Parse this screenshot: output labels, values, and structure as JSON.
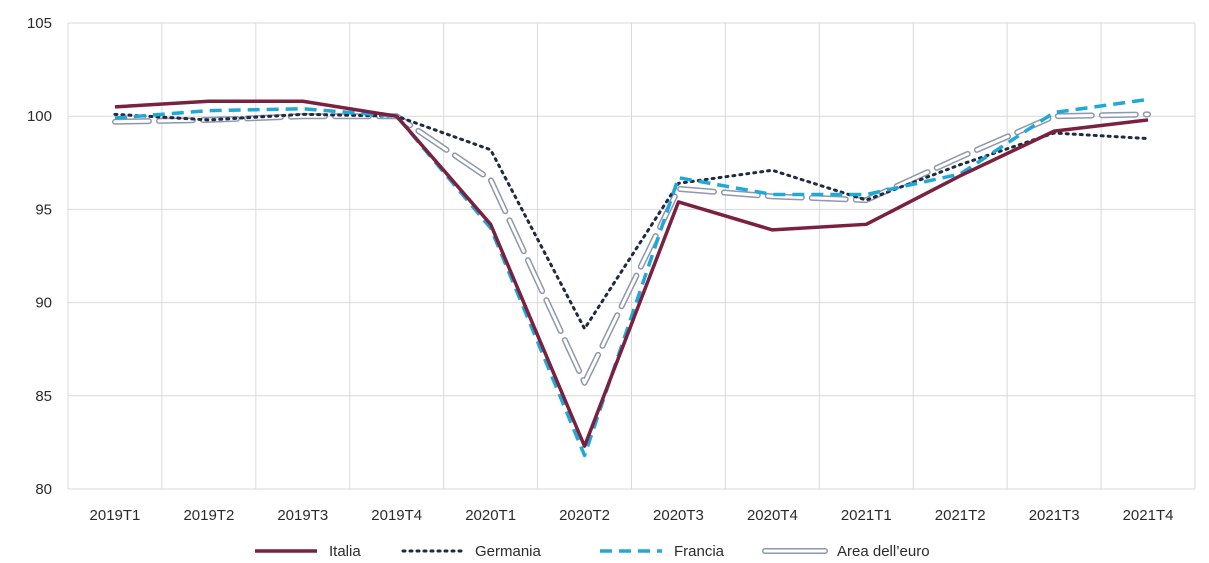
{
  "chart_data": {
    "type": "line",
    "title": "",
    "xlabel": "",
    "ylabel": "",
    "categories": [
      "2019T1",
      "2019T2",
      "2019T3",
      "2019T4",
      "2020T1",
      "2020T2",
      "2020T3",
      "2020T4",
      "2021T1",
      "2021T2",
      "2021T3",
      "2021T4"
    ],
    "ylim": [
      80,
      105
    ],
    "yticks": [
      80,
      85,
      90,
      95,
      100,
      105
    ],
    "grid": "vertical and horizontal",
    "legend_position": "bottom",
    "series": [
      {
        "name": "Italia",
        "color": "#7b2140",
        "style": "solid",
        "values": [
          100.5,
          100.8,
          100.8,
          100.0,
          94.2,
          82.3,
          95.4,
          93.9,
          94.2,
          96.8,
          99.2,
          99.8
        ]
      },
      {
        "name": "Germania",
        "color": "#1f2a44",
        "style": "dotted",
        "values": [
          100.1,
          99.8,
          100.1,
          100.0,
          98.2,
          88.6,
          96.4,
          97.1,
          95.5,
          97.4,
          99.1,
          98.8
        ]
      },
      {
        "name": "Francia",
        "color": "#1fa8d8",
        "style": "dashed",
        "values": [
          99.9,
          100.3,
          100.4,
          100.0,
          94.0,
          81.8,
          96.7,
          95.8,
          95.8,
          96.9,
          100.2,
          100.9
        ]
      },
      {
        "name": "Area dell’euro",
        "color": "#aab3c9",
        "style": "double",
        "values": [
          99.7,
          99.8,
          100.0,
          100.0,
          96.6,
          85.7,
          96.1,
          95.7,
          95.5,
          97.8,
          100.0,
          100.1
        ]
      }
    ]
  }
}
